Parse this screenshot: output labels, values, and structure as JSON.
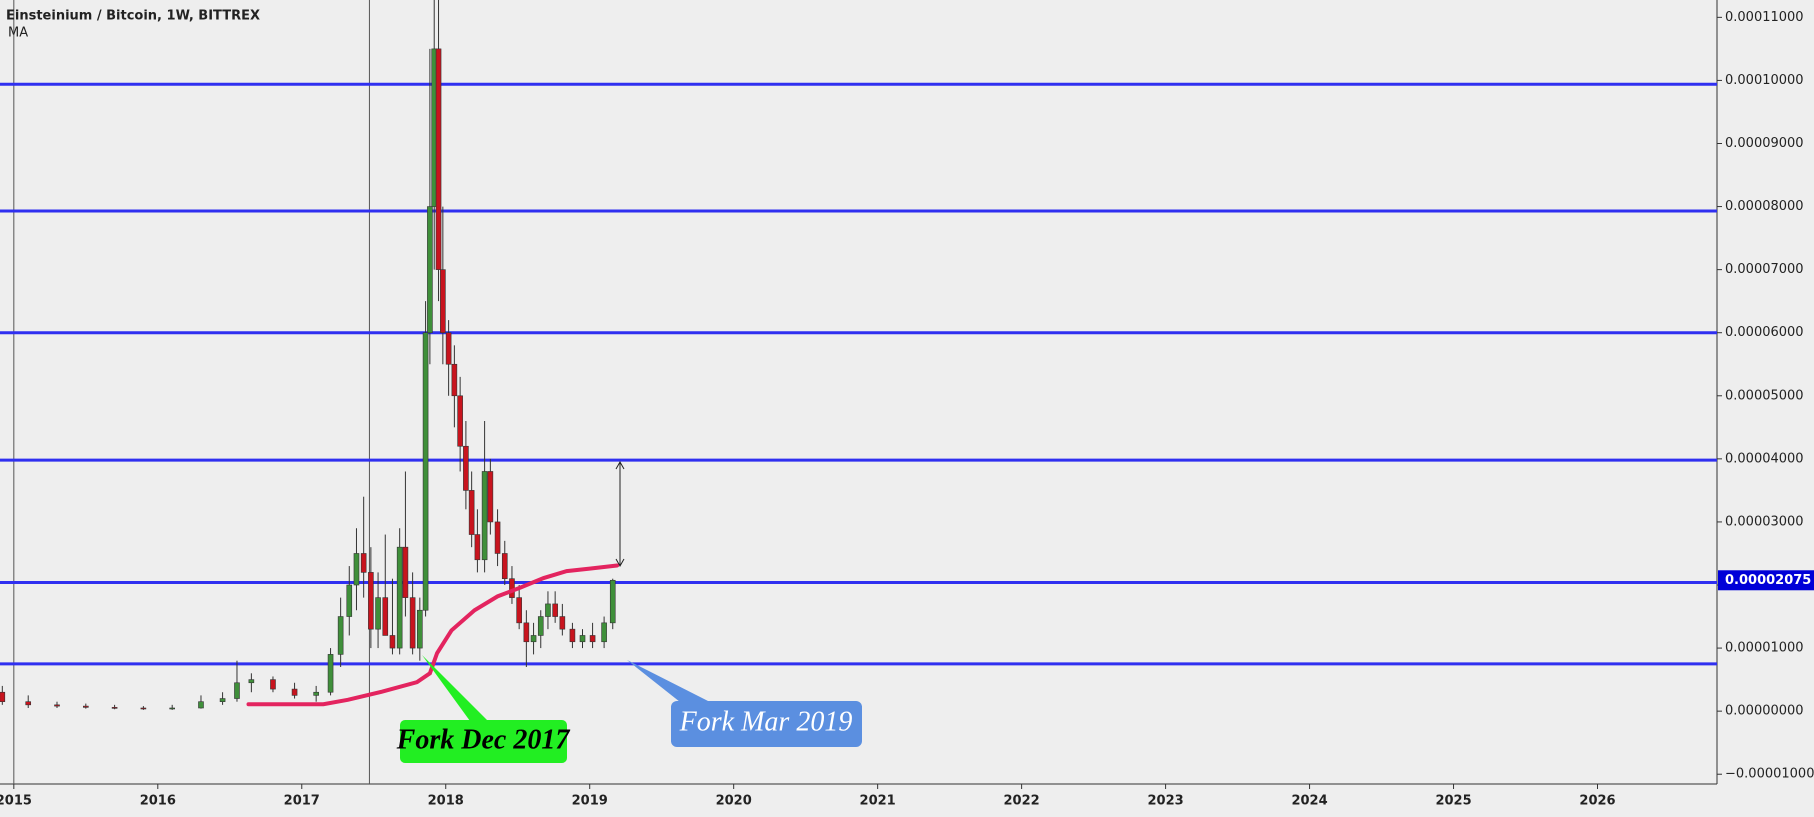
{
  "header": {
    "title": "Einsteinium / Bitcoin, 1W, BITTREX"
  },
  "chart_data": {
    "type": "candlestick",
    "x": [
      2014.92,
      2015.1,
      2015.3,
      2015.5,
      2015.7,
      2015.9,
      2016.1,
      2016.3,
      2016.45,
      2016.55,
      2016.65,
      2016.8,
      2016.95,
      2017.1,
      2017.2,
      2017.27,
      2017.33,
      2017.38,
      2017.43,
      2017.48,
      2017.53,
      2017.58,
      2017.63,
      2017.68,
      2017.72,
      2017.77,
      2017.82,
      2017.86,
      2017.89,
      2017.92,
      2017.95,
      2017.98,
      2018.02,
      2018.06,
      2018.1,
      2018.14,
      2018.18,
      2018.22,
      2018.27,
      2018.31,
      2018.36,
      2018.41,
      2018.46,
      2018.51,
      2018.56,
      2018.61,
      2018.66,
      2018.71,
      2018.76,
      2018.81,
      2018.88,
      2018.95,
      2019.02,
      2019.1,
      2019.16
    ],
    "open": [
      3e-06,
      1.5e-06,
      1e-06,
      8e-07,
      6e-07,
      5e-07,
      4e-07,
      5e-07,
      1.5e-06,
      2e-06,
      4.5e-06,
      5e-06,
      3.5e-06,
      2.5e-06,
      3e-06,
      9e-06,
      1.5e-05,
      2e-05,
      2.5e-05,
      2.2e-05,
      1.3e-05,
      1.8e-05,
      1.2e-05,
      1e-05,
      2.6e-05,
      1.8e-05,
      1e-05,
      1.6e-05,
      6e-05,
      8e-05,
      0.000105,
      7e-05,
      6e-05,
      5.5e-05,
      5e-05,
      4.2e-05,
      3.5e-05,
      2.8e-05,
      2.4e-05,
      3.8e-05,
      3e-05,
      2.5e-05,
      2.1e-05,
      1.8e-05,
      1.4e-05,
      1.1e-05,
      1.2e-05,
      1.5e-05,
      1.7e-05,
      1.5e-05,
      1.3e-05,
      1.1e-05,
      1.2e-05,
      1.1e-05,
      1.4e-05
    ],
    "high": [
      4e-06,
      2.5e-06,
      1.5e-06,
      1.2e-06,
      1e-06,
      8e-07,
      1e-06,
      2.5e-06,
      3e-06,
      8e-06,
      6e-06,
      5.5e-06,
      4.5e-06,
      4e-06,
      1e-05,
      1.8e-05,
      2.3e-05,
      2.9e-05,
      3.4e-05,
      2.6e-05,
      2.2e-05,
      2.8e-05,
      2.1e-05,
      2.9e-05,
      3.8e-05,
      2.2e-05,
      1.8e-05,
      6.5e-05,
      0.000105,
      0.000115,
      0.000115,
      8e-05,
      6.2e-05,
      5.8e-05,
      5.3e-05,
      4.6e-05,
      3.8e-05,
      3.2e-05,
      4.6e-05,
      4e-05,
      3.2e-05,
      2.7e-05,
      2.3e-05,
      2e-05,
      1.6e-05,
      1.4e-05,
      1.6e-05,
      1.9e-05,
      1.9e-05,
      1.7e-05,
      1.4e-05,
      1.3e-05,
      1.4e-05,
      1.5e-05,
      2.1e-05
    ],
    "low": [
      1e-06,
      5e-07,
      5e-07,
      4e-07,
      3e-07,
      2e-07,
      2e-07,
      4e-07,
      1e-06,
      1.5e-06,
      3e-06,
      3e-06,
      2e-06,
      1.5e-06,
      2.5e-06,
      7e-06,
      1.2e-05,
      1.6e-05,
      1.8e-05,
      1e-05,
      1e-05,
      1.2e-05,
      9e-06,
      9e-06,
      1.5e-05,
      9e-06,
      8e-06,
      1.5e-05,
      5.5e-05,
      7e-05,
      6.5e-05,
      5.5e-05,
      5e-05,
      4.5e-05,
      3.8e-05,
      3.2e-05,
      2.6e-05,
      2.2e-05,
      2.2e-05,
      2.8e-05,
      2.3e-05,
      2e-05,
      1.7e-05,
      1.3e-05,
      7e-06,
      9e-06,
      1e-05,
      1.3e-05,
      1.4e-05,
      1.2e-05,
      1e-05,
      1e-05,
      1e-05,
      1e-05,
      1.3e-05
    ],
    "close": [
      1.5e-06,
      1e-06,
      8e-07,
      6e-07,
      5e-07,
      4e-07,
      5e-07,
      1.5e-06,
      2e-06,
      4.5e-06,
      5e-06,
      3.5e-06,
      2.5e-06,
      3e-06,
      9e-06,
      1.5e-05,
      2e-05,
      2.5e-05,
      2.2e-05,
      1.3e-05,
      1.8e-05,
      1.2e-05,
      1e-05,
      2.6e-05,
      1.8e-05,
      1e-05,
      1.6e-05,
      6e-05,
      8e-05,
      0.000105,
      7e-05,
      6e-05,
      5.5e-05,
      5e-05,
      4.2e-05,
      3.5e-05,
      2.8e-05,
      2.4e-05,
      3.8e-05,
      3e-05,
      2.5e-05,
      2.1e-05,
      1.8e-05,
      1.4e-05,
      1.1e-05,
      1.2e-05,
      1.5e-05,
      1.7e-05,
      1.5e-05,
      1.3e-05,
      1.1e-05,
      1.2e-05,
      1.1e-05,
      1.4e-05,
      2.075e-05
    ],
    "up_color": "#3f8f3a",
    "down_color": "#c8141e",
    "ma": {
      "name": "MA",
      "color": "#e3245f",
      "x": [
        2016.63,
        2017.15,
        2017.32,
        2017.56,
        2017.8,
        2017.89,
        2017.94,
        2018.04,
        2018.2,
        2018.36,
        2018.52,
        2018.68,
        2018.84,
        2019.0,
        2019.19
      ],
      "values": [
        1.1e-06,
        1.1e-06,
        1.8e-06,
        3.1e-06,
        4.6e-06,
        6e-06,
        9.2e-06,
        1.28e-05,
        1.6e-05,
        1.82e-05,
        1.96e-05,
        2.11e-05,
        2.22e-05,
        2.26e-05,
        2.31e-05
      ]
    },
    "levels": [
      9.94e-05,
      7.93e-05,
      6e-05,
      3.98e-05,
      2.04e-05,
      7.5e-06
    ],
    "level_color": "#2f2ff0",
    "vlines": [
      2015.0,
      2017.47
    ],
    "last_price": {
      "value": 2.075e-05,
      "label": "0.00002075"
    },
    "annotations": [
      "Fork Dec 2017",
      "Fork Mar 2019"
    ],
    "xlim": [
      2014.904,
      2026.83
    ],
    "xticks": [
      2015,
      2016,
      2017,
      2018,
      2019,
      2020,
      2021,
      2022,
      2023,
      2024,
      2025,
      2026
    ],
    "ylim": [
      -1.155e-05,
      0.00011275
    ],
    "yticks": [
      {
        "value": 0.00011,
        "label": "0.00011000"
      },
      {
        "value": 0.0001,
        "label": "0.00010000"
      },
      {
        "value": 9e-05,
        "label": "0.00009000"
      },
      {
        "value": 8e-05,
        "label": "0.00008000"
      },
      {
        "value": 7e-05,
        "label": "0.00007000"
      },
      {
        "value": 6e-05,
        "label": "0.00006000"
      },
      {
        "value": 5e-05,
        "label": "0.00005000"
      },
      {
        "value": 4e-05,
        "label": "0.00004000"
      },
      {
        "value": 3e-05,
        "label": "0.00003000"
      },
      {
        "value": 2e-05,
        "label": "0.00002000"
      },
      {
        "value": 1e-05,
        "label": "0.00001000"
      },
      {
        "value": 0,
        "label": "0.00000000"
      },
      {
        "value": -1e-05,
        "label": "−0.00001000"
      }
    ]
  }
}
